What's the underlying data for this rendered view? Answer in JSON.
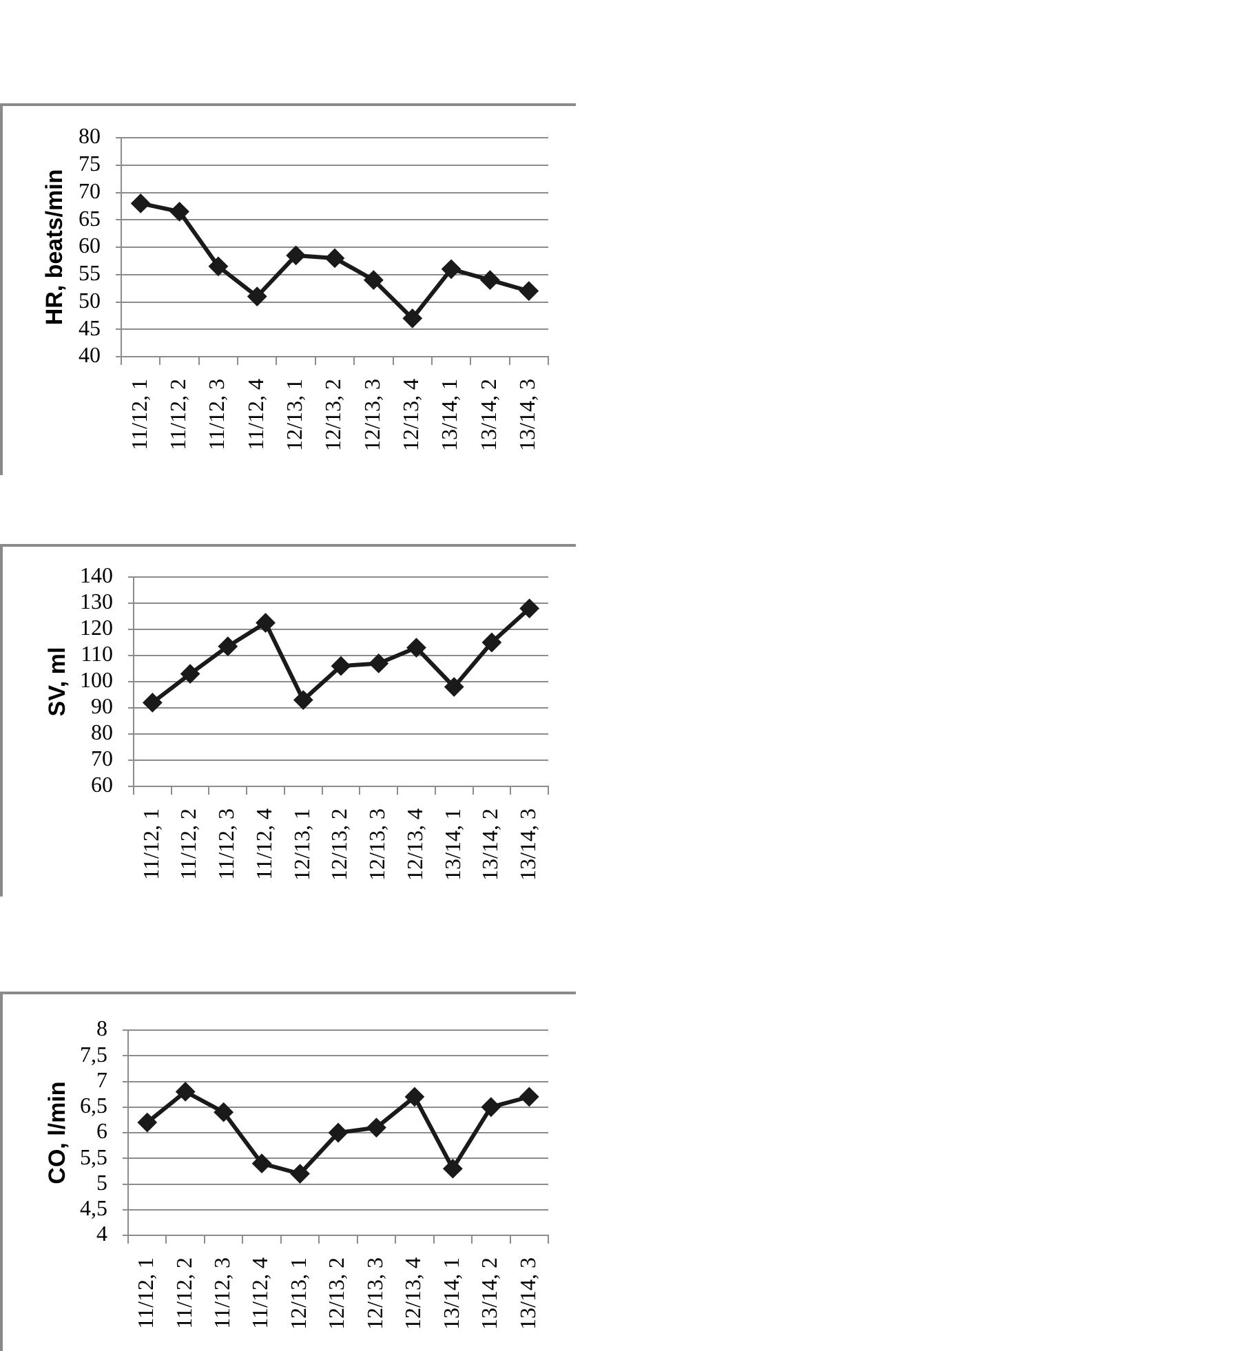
{
  "chart_data": [
    {
      "type": "line",
      "categories": [
        "11/12, 1",
        "11/12, 2",
        "11/12, 3",
        "11/12, 4",
        "12/13, 1",
        "12/13, 2",
        "12/13, 3",
        "12/13, 4",
        "13/14, 1",
        "13/14, 2",
        "13/14, 3"
      ],
      "values": [
        68,
        66.5,
        56.5,
        51,
        58.5,
        58,
        54,
        47,
        56,
        54,
        52
      ],
      "color": "#1a1a1a",
      "ylabel": "HR, beats/min",
      "ylim": [
        40,
        80
      ],
      "yticks": [
        40,
        45,
        50,
        55,
        60,
        65,
        70,
        75,
        80
      ],
      "grid": "y",
      "marker": "diamond",
      "line_style": "solid"
    },
    {
      "type": "line",
      "categories": [
        "11/12, 1",
        "11/12, 2",
        "11/12, 3",
        "11/12, 4",
        "12/13, 1",
        "12/13, 2",
        "12/13, 3",
        "12/13, 4",
        "13/14, 1",
        "13/14, 2",
        "13/14, 3"
      ],
      "values": [
        92,
        103,
        113.5,
        122.5,
        93,
        106,
        107,
        113,
        98,
        115,
        128
      ],
      "color": "#1a1a1a",
      "ylabel": "SV, ml",
      "ylim": [
        60,
        140
      ],
      "yticks": [
        60,
        70,
        80,
        90,
        100,
        110,
        120,
        130,
        140
      ],
      "grid": "y",
      "marker": "diamond",
      "line_style": "solid"
    },
    {
      "type": "line",
      "categories": [
        "11/12, 1",
        "11/12, 2",
        "11/12, 3",
        "11/12, 4",
        "12/13, 1",
        "12/13, 2",
        "12/13, 3",
        "12/13, 4",
        "13/14, 1",
        "13/14, 2",
        "13/14, 3"
      ],
      "values": [
        6.2,
        6.8,
        6.4,
        5.4,
        5.2,
        6,
        6.1,
        6.7,
        5.3,
        6.5,
        6.7
      ],
      "color": "#1a1a1a",
      "ylabel": "CO, l/min",
      "ylim": [
        4,
        8
      ],
      "yticks": [
        4,
        {
          "value": 4.5,
          "label": "4,5"
        },
        5,
        {
          "value": 5.5,
          "label": "5,5"
        },
        6,
        {
          "value": 6.5,
          "label": "6,5"
        },
        7,
        {
          "value": 7.5,
          "label": "7,5"
        },
        8
      ],
      "grid": "y",
      "marker": "diamond",
      "line_style": "solid"
    }
  ]
}
